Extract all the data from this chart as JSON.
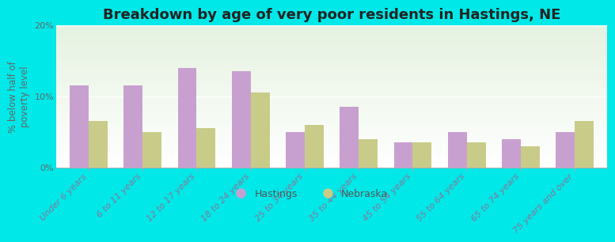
{
  "categories": [
    "Under 6 years",
    "6 to 11 years",
    "12 to 17 years",
    "18 to 24 years",
    "25 to 34 years",
    "35 to 44 years",
    "45 to 54 years",
    "55 to 64 years",
    "65 to 74 years",
    "75 years and over"
  ],
  "hastings": [
    11.5,
    11.5,
    14.0,
    13.5,
    5.0,
    8.5,
    3.5,
    5.0,
    4.0,
    5.0
  ],
  "nebraska": [
    6.5,
    5.0,
    5.5,
    10.5,
    6.0,
    4.0,
    3.5,
    3.5,
    3.0,
    6.5
  ],
  "hastings_color": "#c8a0d0",
  "nebraska_color": "#c8cc88",
  "background_outer": "#00e8e8",
  "title": "Breakdown by age of very poor residents in Hastings, NE",
  "ylabel": "% below half of\npoverty level",
  "ylim": [
    0,
    20
  ],
  "yticks": [
    0,
    10,
    20
  ],
  "ytick_labels": [
    "0%",
    "10%",
    "20%"
  ],
  "title_fontsize": 13,
  "axis_label_fontsize": 8.5,
  "tick_fontsize": 8,
  "legend_hastings": "Hastings",
  "legend_nebraska": "Nebraska",
  "bar_width": 0.35
}
